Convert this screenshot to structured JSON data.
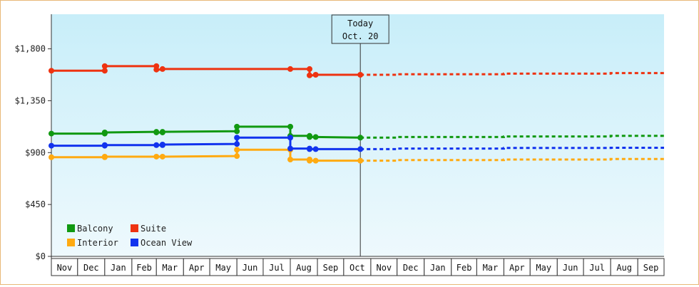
{
  "chart_data": {
    "type": "line",
    "title": "",
    "xlabel": "",
    "ylabel": "",
    "ylim": [
      0,
      2100
    ],
    "yticks": [
      0,
      450,
      900,
      1350,
      1800
    ],
    "ytick_labels": [
      "$0",
      "$450",
      "$900",
      "$1,350",
      "$1,800"
    ],
    "x_range": [
      "2018-11-01",
      "2020-10-01"
    ],
    "months": [
      {
        "start": "2018-11-01",
        "label": "Nov"
      },
      {
        "start": "2018-12-01",
        "label": "Dec"
      },
      {
        "start": "2019-01-01",
        "label": "Jan"
      },
      {
        "start": "2019-02-01",
        "label": "Feb"
      },
      {
        "start": "2019-03-01",
        "label": "Mar"
      },
      {
        "start": "2019-04-01",
        "label": "Apr"
      },
      {
        "start": "2019-05-01",
        "label": "May"
      },
      {
        "start": "2019-06-01",
        "label": "Jun"
      },
      {
        "start": "2019-07-01",
        "label": "Jul"
      },
      {
        "start": "2019-08-01",
        "label": "Aug"
      },
      {
        "start": "2019-09-01",
        "label": "Sep"
      },
      {
        "start": "2019-10-01",
        "label": "Oct"
      },
      {
        "start": "2019-11-01",
        "label": "Nov"
      },
      {
        "start": "2019-12-01",
        "label": "Dec"
      },
      {
        "start": "2020-01-01",
        "label": "Jan"
      },
      {
        "start": "2020-02-01",
        "label": "Feb"
      },
      {
        "start": "2020-03-01",
        "label": "Mar"
      },
      {
        "start": "2020-04-01",
        "label": "Apr"
      },
      {
        "start": "2020-05-01",
        "label": "May"
      },
      {
        "start": "2020-06-01",
        "label": "Jun"
      },
      {
        "start": "2020-07-01",
        "label": "Jul"
      },
      {
        "start": "2020-08-01",
        "label": "Aug"
      },
      {
        "start": "2020-09-01",
        "label": "Sep"
      }
    ],
    "today": {
      "date": "2019-10-20",
      "line1": "Today",
      "line2": "Oct. 20"
    },
    "legend_placement": "bottom-left",
    "grid": false,
    "series": [
      {
        "name": "Balcony",
        "color": "#119911",
        "history": [
          [
            "2018-11-01",
            1065
          ],
          [
            "2019-01-01",
            1065
          ],
          [
            "2019-01-01",
            1075
          ],
          [
            "2019-03-01",
            1080
          ],
          [
            "2019-03-01",
            1075
          ],
          [
            "2019-03-08",
            1075
          ],
          [
            "2019-03-08",
            1080
          ],
          [
            "2019-06-01",
            1085
          ],
          [
            "2019-06-01",
            1125
          ],
          [
            "2019-08-01",
            1125
          ],
          [
            "2019-08-01",
            1045
          ],
          [
            "2019-08-23",
            1045
          ],
          [
            "2019-08-23",
            1035
          ],
          [
            "2019-08-30",
            1035
          ],
          [
            "2019-10-20",
            1030
          ]
        ],
        "history_markers": [
          [
            "2018-11-01",
            1065
          ],
          [
            "2019-01-01",
            1065
          ],
          [
            "2019-01-01",
            1075
          ],
          [
            "2019-03-01",
            1080
          ],
          [
            "2019-03-01",
            1075
          ],
          [
            "2019-03-08",
            1075
          ],
          [
            "2019-03-08",
            1080
          ],
          [
            "2019-06-01",
            1085
          ],
          [
            "2019-06-01",
            1125
          ],
          [
            "2019-08-01",
            1125
          ],
          [
            "2019-08-01",
            1045
          ],
          [
            "2019-08-23",
            1045
          ],
          [
            "2019-08-23",
            1035
          ],
          [
            "2019-08-30",
            1035
          ],
          [
            "2019-10-20",
            1030
          ]
        ],
        "forecast": [
          [
            "2019-10-20",
            1030
          ],
          [
            "2019-12-01",
            1030
          ],
          [
            "2019-12-01",
            1035
          ],
          [
            "2020-04-01",
            1035
          ],
          [
            "2020-04-01",
            1040
          ],
          [
            "2020-08-01",
            1040
          ],
          [
            "2020-08-01",
            1045
          ],
          [
            "2020-10-01",
            1045
          ]
        ]
      },
      {
        "name": "Suite",
        "color": "#ee3311",
        "history": [
          [
            "2018-11-01",
            1610
          ],
          [
            "2019-01-01",
            1610
          ],
          [
            "2019-01-01",
            1650
          ],
          [
            "2019-03-01",
            1650
          ],
          [
            "2019-03-01",
            1620
          ],
          [
            "2019-03-08",
            1620
          ],
          [
            "2019-03-08",
            1625
          ],
          [
            "2019-08-01",
            1625
          ],
          [
            "2019-08-23",
            1625
          ],
          [
            "2019-08-23",
            1570
          ],
          [
            "2019-08-30",
            1570
          ],
          [
            "2019-08-30",
            1575
          ],
          [
            "2019-10-20",
            1575
          ]
        ],
        "history_markers": [
          [
            "2018-11-01",
            1610
          ],
          [
            "2019-01-01",
            1610
          ],
          [
            "2019-01-01",
            1650
          ],
          [
            "2019-03-01",
            1650
          ],
          [
            "2019-03-01",
            1620
          ],
          [
            "2019-03-08",
            1625
          ],
          [
            "2019-08-01",
            1625
          ],
          [
            "2019-08-23",
            1625
          ],
          [
            "2019-08-23",
            1570
          ],
          [
            "2019-08-30",
            1575
          ],
          [
            "2019-10-20",
            1575
          ]
        ],
        "forecast": [
          [
            "2019-10-20",
            1575
          ],
          [
            "2019-12-01",
            1575
          ],
          [
            "2019-12-01",
            1580
          ],
          [
            "2020-04-01",
            1580
          ],
          [
            "2020-04-01",
            1585
          ],
          [
            "2020-08-01",
            1585
          ],
          [
            "2020-08-01",
            1590
          ],
          [
            "2020-10-01",
            1590
          ]
        ]
      },
      {
        "name": "Interior",
        "color": "#ffaa11",
        "history": [
          [
            "2018-11-01",
            860
          ],
          [
            "2019-01-01",
            860
          ],
          [
            "2019-01-01",
            865
          ],
          [
            "2019-03-01",
            865
          ],
          [
            "2019-03-08",
            865
          ],
          [
            "2019-06-01",
            870
          ],
          [
            "2019-06-01",
            925
          ],
          [
            "2019-08-01",
            925
          ],
          [
            "2019-08-01",
            840
          ],
          [
            "2019-08-23",
            840
          ],
          [
            "2019-08-23",
            830
          ],
          [
            "2019-08-30",
            830
          ],
          [
            "2019-10-20",
            830
          ]
        ],
        "history_markers": [
          [
            "2018-11-01",
            860
          ],
          [
            "2019-01-01",
            860
          ],
          [
            "2019-01-01",
            865
          ],
          [
            "2019-03-01",
            865
          ],
          [
            "2019-03-08",
            865
          ],
          [
            "2019-06-01",
            870
          ],
          [
            "2019-06-01",
            925
          ],
          [
            "2019-08-01",
            925
          ],
          [
            "2019-08-01",
            840
          ],
          [
            "2019-08-23",
            840
          ],
          [
            "2019-08-23",
            830
          ],
          [
            "2019-08-30",
            830
          ],
          [
            "2019-10-20",
            830
          ]
        ],
        "forecast": [
          [
            "2019-10-20",
            830
          ],
          [
            "2019-12-01",
            830
          ],
          [
            "2019-12-01",
            835
          ],
          [
            "2020-04-01",
            835
          ],
          [
            "2020-04-01",
            840
          ],
          [
            "2020-08-01",
            840
          ],
          [
            "2020-08-01",
            845
          ],
          [
            "2020-10-01",
            845
          ]
        ]
      },
      {
        "name": "Ocean View",
        "color": "#1133ee",
        "history": [
          [
            "2018-11-01",
            960
          ],
          [
            "2019-01-01",
            960
          ],
          [
            "2019-01-01",
            965
          ],
          [
            "2019-03-01",
            965
          ],
          [
            "2019-03-08",
            965
          ],
          [
            "2019-03-08",
            970
          ],
          [
            "2019-06-01",
            975
          ],
          [
            "2019-06-01",
            1030
          ],
          [
            "2019-08-01",
            1030
          ],
          [
            "2019-08-01",
            935
          ],
          [
            "2019-08-23",
            935
          ],
          [
            "2019-08-23",
            930
          ],
          [
            "2019-08-30",
            930
          ],
          [
            "2019-10-20",
            930
          ]
        ],
        "history_markers": [
          [
            "2018-11-01",
            960
          ],
          [
            "2019-01-01",
            960
          ],
          [
            "2019-01-01",
            965
          ],
          [
            "2019-03-01",
            965
          ],
          [
            "2019-03-08",
            965
          ],
          [
            "2019-03-08",
            970
          ],
          [
            "2019-06-01",
            975
          ],
          [
            "2019-06-01",
            1030
          ],
          [
            "2019-08-01",
            1030
          ],
          [
            "2019-08-01",
            935
          ],
          [
            "2019-08-23",
            935
          ],
          [
            "2019-08-23",
            930
          ],
          [
            "2019-08-30",
            930
          ],
          [
            "2019-10-20",
            930
          ]
        ],
        "forecast": [
          [
            "2019-10-20",
            930
          ],
          [
            "2019-12-01",
            930
          ],
          [
            "2019-12-01",
            935
          ],
          [
            "2020-04-01",
            935
          ],
          [
            "2020-04-01",
            940
          ],
          [
            "2020-08-01",
            940
          ],
          [
            "2020-08-01",
            942
          ],
          [
            "2020-10-01",
            942
          ]
        ]
      }
    ],
    "legend_order": [
      "Balcony",
      "Suite",
      "Interior",
      "Ocean View"
    ],
    "colors": {
      "plot_bg_top": "#c8eef9",
      "plot_bg_bottom": "#eef9fd",
      "frame_border": "#e8b878",
      "axis": "#333333"
    }
  }
}
